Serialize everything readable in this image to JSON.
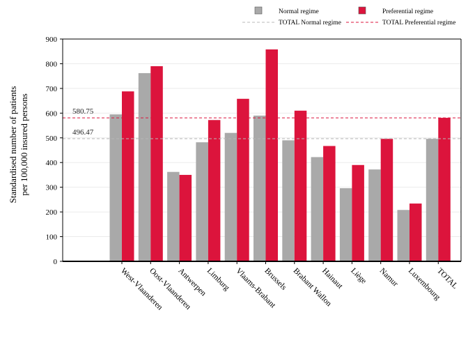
{
  "chart_data": {
    "type": "bar",
    "ylabel": "Standardised number of patients per 100,000 insured persons",
    "ylabel_lines": [
      "Standardised number of patients",
      "per 100,000 insured persons"
    ],
    "ylim": [
      0,
      900
    ],
    "yticks": [
      0,
      100,
      200,
      300,
      400,
      500,
      600,
      700,
      800,
      900
    ],
    "grid": "horizontal",
    "legend_position": "top-right",
    "categories": [
      "West-Vlaanderen",
      "Oost-Vlaanderen",
      "Antwerpen",
      "Limburg",
      "Vlaams-Brabant",
      "Brussels",
      "Brabant Wallon",
      "Hainaut",
      "Liège",
      "Namur",
      "Luxembourg",
      "TOTAL"
    ],
    "series": [
      {
        "name": "Normal regime",
        "color": "#a9a9a9",
        "values": [
          595,
          762,
          362,
          482,
          520,
          590,
          490,
          422,
          296,
          372,
          208,
          496
        ]
      },
      {
        "name": "Preferential regime",
        "color": "#dc143c",
        "values": [
          688,
          790,
          350,
          572,
          658,
          858,
          610,
          467,
          390,
          496,
          234,
          581
        ]
      }
    ],
    "reference_lines": [
      {
        "name": "TOTAL Normal regime",
        "value": 496.47,
        "label": "496.47",
        "color": "#b8b8b8",
        "style": "dashed"
      },
      {
        "name": "TOTAL Preferential regime",
        "value": 580.75,
        "label": "580.75",
        "color": "#dc143c",
        "style": "dashed"
      }
    ]
  }
}
